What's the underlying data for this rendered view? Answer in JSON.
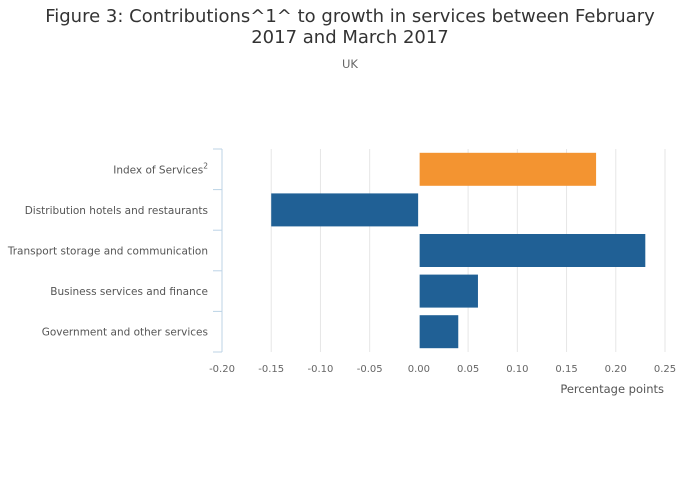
{
  "header": {
    "title": "Figure 3: Contributions^1^ to growth in services between February 2017 and March 2017",
    "subtitle": "UK"
  },
  "colors": {
    "highlight": "#f39431",
    "primary": "#206095",
    "grid": "#e6e6e6",
    "axis": "#bcd3e6"
  },
  "chart_data": {
    "type": "bar",
    "orientation": "horizontal",
    "title": "Figure 3: Contributions^1^ to growth in services between February 2017 and March 2017",
    "subtitle": "UK",
    "xlabel": "Percentage points",
    "ylabel": "",
    "xlim": [
      -0.2,
      0.25
    ],
    "xticks": [
      "-0.20",
      "-0.15",
      "-0.10",
      "-0.05",
      "0.00",
      "0.05",
      "0.10",
      "0.15",
      "0.20",
      "0.25"
    ],
    "grid": true,
    "legend": "none",
    "categories": [
      {
        "label": "Index of Services",
        "sup": "2"
      },
      {
        "label": "Distribution hotels and restaurants",
        "sup": ""
      },
      {
        "label": "Transport storage and communication",
        "sup": ""
      },
      {
        "label": "Business services and finance",
        "sup": ""
      },
      {
        "label": "Government and other services",
        "sup": ""
      }
    ],
    "values": [
      0.18,
      -0.15,
      0.23,
      0.06,
      0.04
    ],
    "bar_colors": [
      "#f39431",
      "#206095",
      "#206095",
      "#206095",
      "#206095"
    ]
  }
}
